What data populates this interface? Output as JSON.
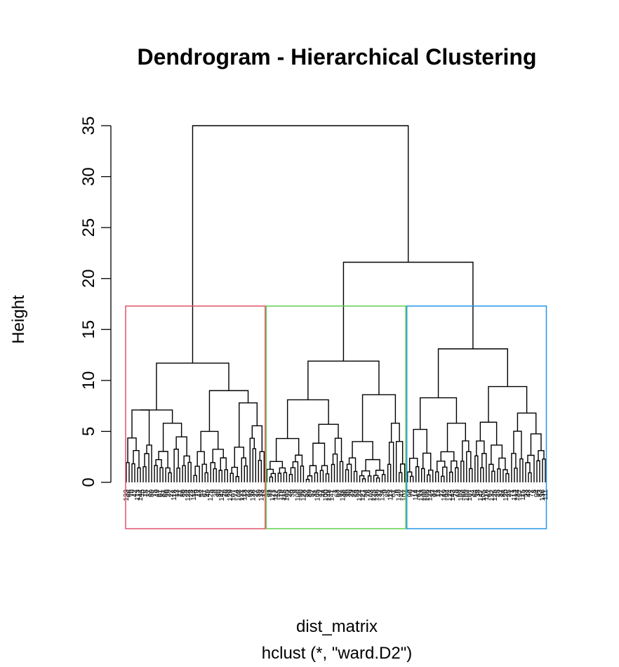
{
  "chart_data": {
    "type": "dendrogram",
    "title": "Dendrogram - Hierarchical Clustering",
    "ylabel": "Height",
    "xlabel": "dist_matrix",
    "sublabel": "hclust (*, \"ward.D2\")",
    "yticks": [
      0,
      5,
      10,
      15,
      20,
      25,
      30,
      35
    ],
    "ylim": [
      0,
      35
    ],
    "n_leaves": 150,
    "top_merges": [
      {
        "name": "root",
        "height": 35.0
      },
      {
        "name": "clusters 2+3",
        "height": 21.6
      },
      {
        "name": "cluster 2",
        "height": 11.9
      },
      {
        "name": "cluster 3",
        "height": 13.1
      },
      {
        "name": "cluster 1",
        "height": 11.7
      }
    ],
    "clusters": [
      {
        "id": 1,
        "color": "#DF536B",
        "size": 50
      },
      {
        "id": 2,
        "color": "#61D04F",
        "size": 50
      },
      {
        "id": 3,
        "color": "#2297E6",
        "size": 50
      }
    ]
  }
}
